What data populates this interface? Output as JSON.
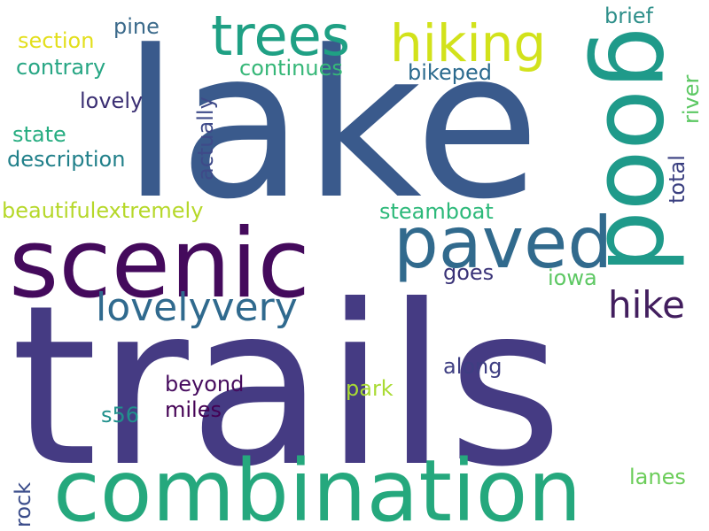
{
  "words": [
    {
      "key": "trails",
      "text": "trails",
      "color": "#453b83"
    },
    {
      "key": "lake",
      "text": "lake",
      "color": "#3a5a8c"
    },
    {
      "key": "scenic",
      "text": "scenic",
      "color": "#440a5c"
    },
    {
      "key": "combination",
      "text": "combination",
      "color": "#25a87d"
    },
    {
      "key": "good",
      "text": "good",
      "color": "#1f9a8a"
    },
    {
      "key": "paved",
      "text": "paved",
      "color": "#316a8d"
    },
    {
      "key": "hiking",
      "text": "hiking",
      "color": "#d2e21b"
    },
    {
      "key": "trees",
      "text": "trees",
      "color": "#1fa084"
    },
    {
      "key": "lovelyvery",
      "text": "lovelyvery",
      "color": "#306a8e"
    },
    {
      "key": "hike",
      "text": "hike",
      "color": "#421e5e"
    },
    {
      "key": "pine",
      "text": "pine",
      "color": "#3b6a8b"
    },
    {
      "key": "section",
      "text": "section",
      "color": "#e3df1c"
    },
    {
      "key": "contrary",
      "text": "contrary",
      "color": "#27a684"
    },
    {
      "key": "continues",
      "text": "continues",
      "color": "#36b778"
    },
    {
      "key": "bikeped",
      "text": "bikeped",
      "color": "#2b6a8e"
    },
    {
      "key": "brief",
      "text": "brief",
      "color": "#2e8f8a"
    },
    {
      "key": "lovely",
      "text": "lovely",
      "color": "#3b2f73"
    },
    {
      "key": "actually",
      "text": "actually",
      "color": "#3e4a89"
    },
    {
      "key": "river",
      "text": "river",
      "color": "#5cc863"
    },
    {
      "key": "state",
      "text": "state",
      "color": "#27ad81"
    },
    {
      "key": "description",
      "text": "description",
      "color": "#21808a"
    },
    {
      "key": "total",
      "text": "total",
      "color": "#3a3f80"
    },
    {
      "key": "beautifulextremely",
      "text": "beautifulextremely",
      "color": "#b6d82a"
    },
    {
      "key": "steamboat",
      "text": "steamboat",
      "color": "#2db97a"
    },
    {
      "key": "goes",
      "text": "goes",
      "color": "#3a3378"
    },
    {
      "key": "iowa",
      "text": "iowa",
      "color": "#5dc863"
    },
    {
      "key": "along",
      "text": "along",
      "color": "#3e3e82"
    },
    {
      "key": "beyond",
      "text": "beyond",
      "color": "#460b5e"
    },
    {
      "key": "park",
      "text": "park",
      "color": "#a9db33"
    },
    {
      "key": "s56",
      "text": "s56",
      "color": "#20908c"
    },
    {
      "key": "miles",
      "text": "miles",
      "color": "#440154"
    },
    {
      "key": "lanes",
      "text": "lanes",
      "color": "#6ccd5a"
    },
    {
      "key": "rock",
      "text": "rock",
      "color": "#3a4c8a"
    }
  ]
}
